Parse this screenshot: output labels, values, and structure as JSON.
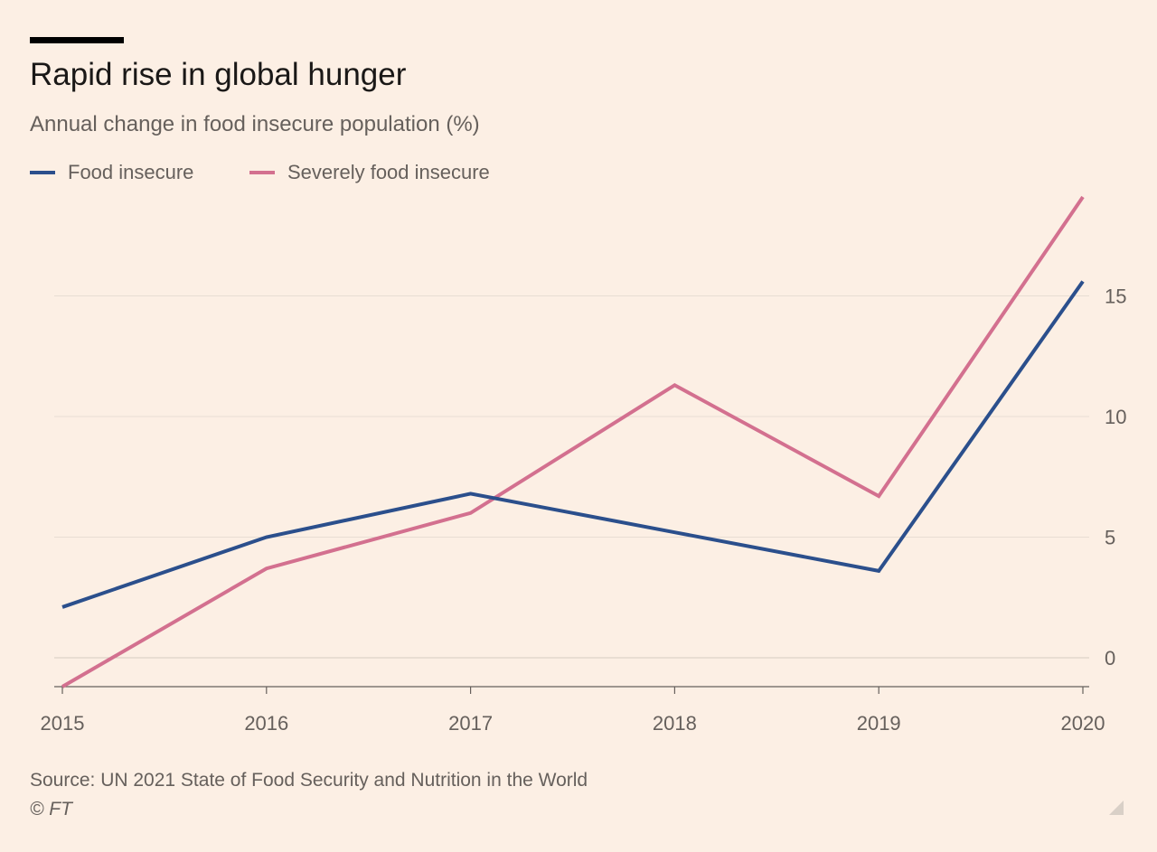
{
  "header": {
    "title": "Rapid rise in global hunger",
    "subtitle": "Annual change in food insecure population (%)"
  },
  "footer": {
    "source": "Source: UN 2021 State of Food Security and Nutrition in the World",
    "credit": "© FT"
  },
  "colors": {
    "background": "#FCEFE4",
    "food_insecure": "#2B4F8C",
    "severely_food_insecure": "#D3708F",
    "gridline": "#E8DDD3",
    "axis_text": "#66605C"
  },
  "chart_data": {
    "type": "line",
    "title": "Rapid rise in global hunger",
    "subtitle": "Annual change in food insecure population (%)",
    "x": [
      "2015",
      "2016",
      "2017",
      "2018",
      "2019",
      "2020"
    ],
    "series": [
      {
        "name": "Food insecure",
        "color": "#2B4F8C",
        "values": [
          2.1,
          5.0,
          6.8,
          5.2,
          3.6,
          15.6
        ]
      },
      {
        "name": "Severely food insecure",
        "color": "#D3708F",
        "values": [
          -1.2,
          3.7,
          6.0,
          11.3,
          6.7,
          19.1
        ]
      }
    ],
    "y_ticks": [
      0,
      5,
      10,
      15
    ],
    "ylim": [
      -1.2,
      19.5
    ],
    "y_axis_side": "right",
    "grid": true,
    "legend_placement": "top-left",
    "xlabel": "",
    "ylabel": ""
  }
}
